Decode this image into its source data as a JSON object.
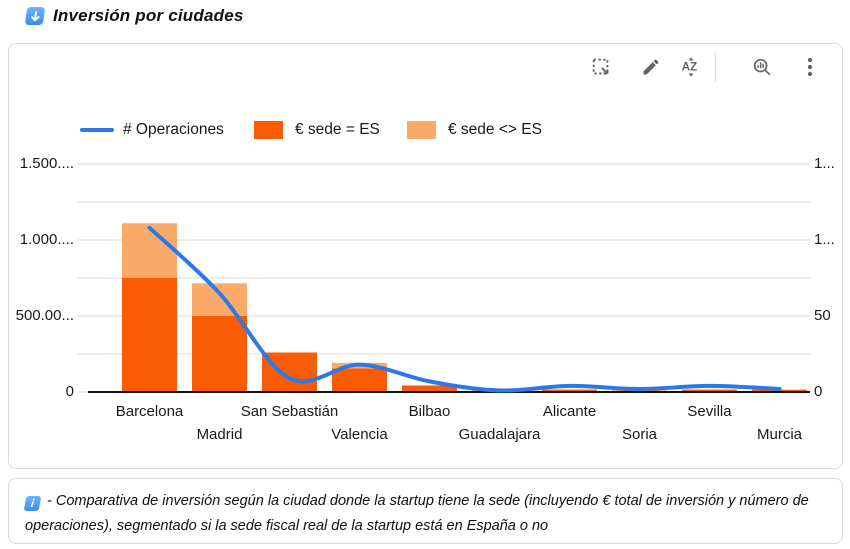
{
  "title": "Inversión por ciudades",
  "toolbar": {
    "icons": [
      "select-region",
      "edit",
      "sort-az",
      "explore",
      "more-options"
    ]
  },
  "note": {
    "text": "- Comparativa de inversión según la ciudad donde la startup tiene la sede (incluyendo € total de inversión y número de operaciones), segmentado si la sede fiscal real de la startup está en España o no"
  },
  "chart_data": {
    "type": "combo",
    "title": "Inversión por ciudades",
    "categories": [
      "Barcelona",
      "Madrid",
      "San Sebastián",
      "Valencia",
      "Bilbao",
      "Guadalajara",
      "Alicante",
      "Soria",
      "Sevilla",
      "Murcia"
    ],
    "series": [
      {
        "name": "# Operaciones",
        "type": "line",
        "axis": "right",
        "color": "#2a79e8",
        "values": [
          108,
          65,
          9,
          18,
          7,
          1,
          4,
          2,
          4,
          2
        ]
      },
      {
        "name": "€ sede = ES",
        "type": "bar",
        "axis": "left",
        "color": "#fa5b05",
        "values": [
          750000,
          500000,
          260000,
          155000,
          43000,
          2000,
          16000,
          10000,
          16000,
          15000
        ]
      },
      {
        "name": "€ sede <> ES",
        "type": "bar",
        "axis": "left",
        "color": "#fcaa69",
        "values": [
          360000,
          215000,
          0,
          37000,
          0,
          22000,
          0,
          0,
          0,
          0
        ]
      }
    ],
    "bar_mode": "stacked",
    "grid": true,
    "legend_position": "top",
    "left_axis": {
      "range": [
        0,
        1500000
      ],
      "gridline_step": 250000,
      "tick_values": [
        1500000,
        1000000,
        500000,
        0
      ],
      "tick_labels": [
        "1.500....",
        "1.000....",
        "500.00...",
        "0"
      ]
    },
    "right_axis": {
      "range": [
        0,
        150
      ],
      "tick_values": [
        150,
        100,
        50,
        0
      ],
      "tick_labels": [
        "1...",
        "1...",
        "50",
        "0"
      ]
    }
  }
}
